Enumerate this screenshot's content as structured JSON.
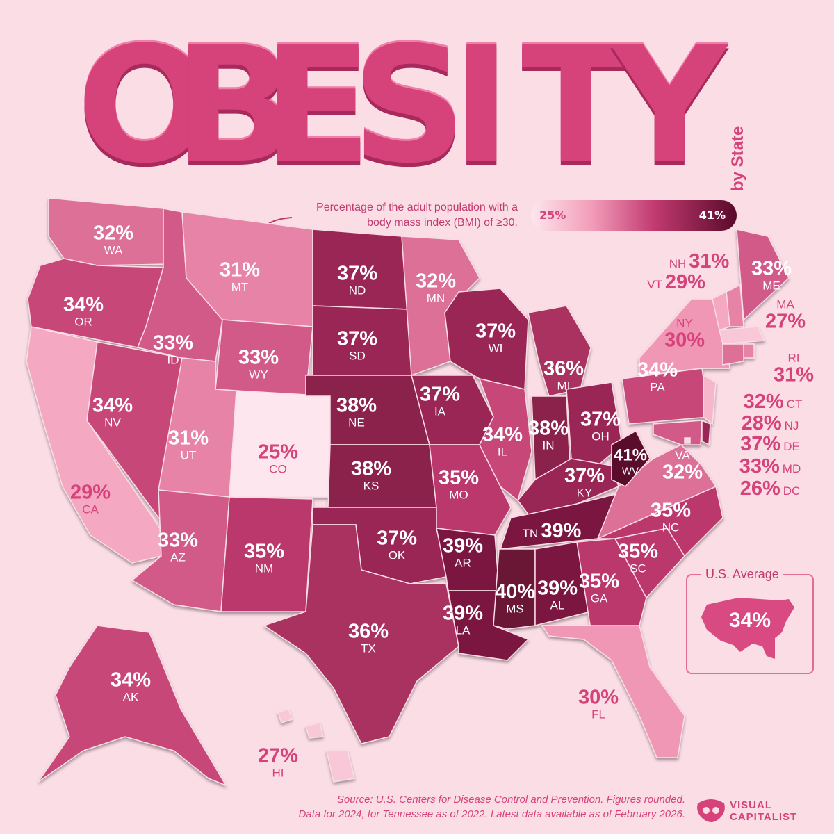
{
  "title": {
    "letters": [
      "O",
      "B",
      "E",
      "S",
      "I",
      "T",
      "Y"
    ],
    "byline": "by State"
  },
  "subtitle": "Percentage of the adult population with a body mass index (BMI) of ≥30.",
  "legend": {
    "min": "25%",
    "max": "41%"
  },
  "colors": {
    "background": "#fbdde6",
    "accent": "#d6437a",
    "scale_low": "#fde6ee",
    "scale_high": "#5a0a2a"
  },
  "us_average": {
    "title": "U.S. Average",
    "value": "34%"
  },
  "states": [
    {
      "abbr": "WA",
      "pct": "32%",
      "value": 32
    },
    {
      "abbr": "OR",
      "pct": "34%",
      "value": 34
    },
    {
      "abbr": "CA",
      "pct": "29%",
      "value": 29
    },
    {
      "abbr": "NV",
      "pct": "34%",
      "value": 34
    },
    {
      "abbr": "ID",
      "pct": "33%",
      "value": 33
    },
    {
      "abbr": "MT",
      "pct": "31%",
      "value": 31
    },
    {
      "abbr": "WY",
      "pct": "33%",
      "value": 33
    },
    {
      "abbr": "UT",
      "pct": "31%",
      "value": 31
    },
    {
      "abbr": "CO",
      "pct": "25%",
      "value": 25
    },
    {
      "abbr": "AZ",
      "pct": "33%",
      "value": 33
    },
    {
      "abbr": "NM",
      "pct": "35%",
      "value": 35
    },
    {
      "abbr": "ND",
      "pct": "37%",
      "value": 37
    },
    {
      "abbr": "SD",
      "pct": "37%",
      "value": 37
    },
    {
      "abbr": "NE",
      "pct": "38%",
      "value": 38
    },
    {
      "abbr": "KS",
      "pct": "38%",
      "value": 38
    },
    {
      "abbr": "OK",
      "pct": "37%",
      "value": 37
    },
    {
      "abbr": "TX",
      "pct": "36%",
      "value": 36
    },
    {
      "abbr": "MN",
      "pct": "32%",
      "value": 32
    },
    {
      "abbr": "IA",
      "pct": "37%",
      "value": 37
    },
    {
      "abbr": "MO",
      "pct": "35%",
      "value": 35
    },
    {
      "abbr": "AR",
      "pct": "39%",
      "value": 39
    },
    {
      "abbr": "LA",
      "pct": "39%",
      "value": 39
    },
    {
      "abbr": "WI",
      "pct": "37%",
      "value": 37
    },
    {
      "abbr": "IL",
      "pct": "34%",
      "value": 34
    },
    {
      "abbr": "MI",
      "pct": "36%",
      "value": 36
    },
    {
      "abbr": "IN",
      "pct": "38%",
      "value": 38
    },
    {
      "abbr": "OH",
      "pct": "37%",
      "value": 37
    },
    {
      "abbr": "KY",
      "pct": "37%",
      "value": 37
    },
    {
      "abbr": "TN",
      "pct": "39%",
      "value": 39
    },
    {
      "abbr": "MS",
      "pct": "40%",
      "value": 40
    },
    {
      "abbr": "AL",
      "pct": "39%",
      "value": 39
    },
    {
      "abbr": "GA",
      "pct": "35%",
      "value": 35
    },
    {
      "abbr": "FL",
      "pct": "30%",
      "value": 30
    },
    {
      "abbr": "SC",
      "pct": "35%",
      "value": 35
    },
    {
      "abbr": "NC",
      "pct": "35%",
      "value": 35
    },
    {
      "abbr": "VA",
      "pct": "32%",
      "value": 32
    },
    {
      "abbr": "WV",
      "pct": "41%",
      "value": 41
    },
    {
      "abbr": "PA",
      "pct": "34%",
      "value": 34
    },
    {
      "abbr": "NY",
      "pct": "30%",
      "value": 30
    },
    {
      "abbr": "ME",
      "pct": "33%",
      "value": 33
    },
    {
      "abbr": "NH",
      "pct": "31%",
      "value": 31
    },
    {
      "abbr": "VT",
      "pct": "29%",
      "value": 29
    },
    {
      "abbr": "MA",
      "pct": "27%",
      "value": 27
    },
    {
      "abbr": "RI",
      "pct": "31%",
      "value": 31
    },
    {
      "abbr": "CT",
      "pct": "32%",
      "value": 32
    },
    {
      "abbr": "NJ",
      "pct": "28%",
      "value": 28
    },
    {
      "abbr": "DE",
      "pct": "37%",
      "value": 37
    },
    {
      "abbr": "MD",
      "pct": "33%",
      "value": 33
    },
    {
      "abbr": "DC",
      "pct": "26%",
      "value": 26
    },
    {
      "abbr": "AK",
      "pct": "34%",
      "value": 34
    },
    {
      "abbr": "HI",
      "pct": "27%",
      "value": 27
    }
  ],
  "source": {
    "line1": "Source: U.S. Centers for Disease Control and Prevention. Figures rounded.",
    "line2": "Data for 2024, for Tennessee as of 2022. Latest data available as of February 2026."
  },
  "brand": {
    "line1": "VISUAL",
    "line2": "CAPITALIST"
  }
}
